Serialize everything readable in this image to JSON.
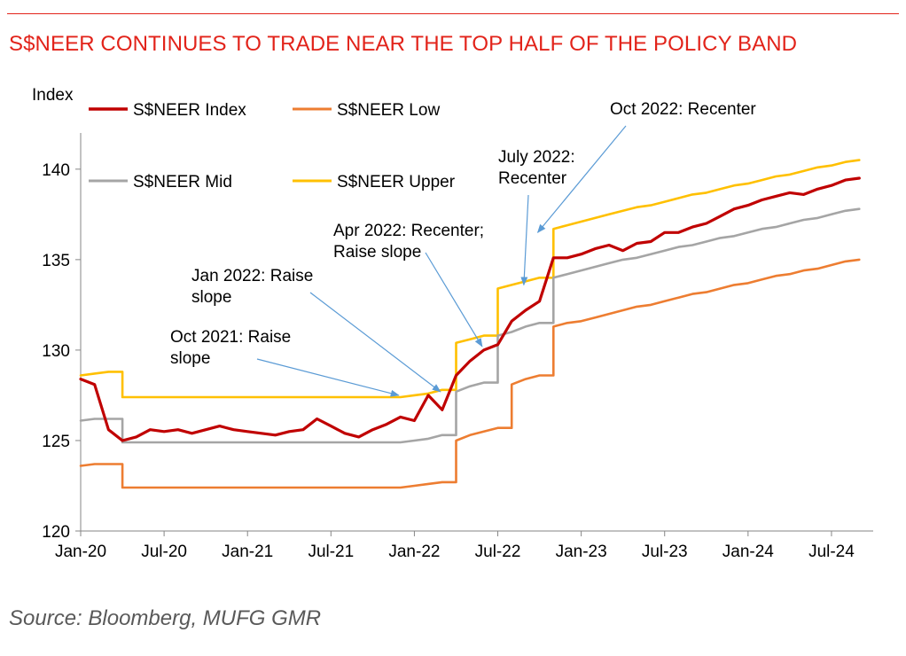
{
  "header": {
    "title": "S$NEER CONTINUES TO TRADE NEAR THE TOP HALF OF THE POLICY BAND"
  },
  "footer": {
    "source": "Source: Bloomberg, MUFG GMR"
  },
  "colors": {
    "title_red": "#e2231a",
    "index": "#c00000",
    "low": "#ed7d31",
    "mid": "#a5a5a5",
    "upper": "#ffc000",
    "annotation_arrow": "#5b9bd5"
  },
  "chart_data": {
    "type": "line",
    "ylabel": "Index",
    "ylim": [
      120,
      142
    ],
    "yticks": [
      120,
      125,
      130,
      135,
      140
    ],
    "xlim": [
      "2020-01",
      "2024-10"
    ],
    "xticks": [
      "Jan-20",
      "Jul-20",
      "Jan-21",
      "Jul-21",
      "Jan-22",
      "Jul-22",
      "Jan-23",
      "Jul-23",
      "Jan-24",
      "Jul-24"
    ],
    "grid": false,
    "legend_placement": "top-left",
    "x": [
      "2020-01",
      "2020-02",
      "2020-03",
      "2020-04",
      "2020-05",
      "2020-06",
      "2020-07",
      "2020-08",
      "2020-09",
      "2020-10",
      "2020-11",
      "2020-12",
      "2021-01",
      "2021-02",
      "2021-03",
      "2021-04",
      "2021-05",
      "2021-06",
      "2021-07",
      "2021-08",
      "2021-09",
      "2021-10",
      "2021-11",
      "2021-12",
      "2022-01",
      "2022-02",
      "2022-03",
      "2022-04",
      "2022-05",
      "2022-06",
      "2022-07",
      "2022-08",
      "2022-09",
      "2022-10",
      "2022-11",
      "2022-12",
      "2023-01",
      "2023-02",
      "2023-03",
      "2023-04",
      "2023-05",
      "2023-06",
      "2023-07",
      "2023-08",
      "2023-09",
      "2023-10",
      "2023-11",
      "2023-12",
      "2024-01",
      "2024-02",
      "2024-03",
      "2024-04",
      "2024-05",
      "2024-06",
      "2024-07",
      "2024-08",
      "2024-09"
    ],
    "series": [
      {
        "name": "S$NEER Index",
        "color": "#c00000",
        "values": [
          128.4,
          128.1,
          125.6,
          125.0,
          125.2,
          125.6,
          125.5,
          125.6,
          125.4,
          125.6,
          125.8,
          125.6,
          125.5,
          125.4,
          125.3,
          125.5,
          125.6,
          126.2,
          125.8,
          125.4,
          125.2,
          125.6,
          125.9,
          126.3,
          126.1,
          127.5,
          126.7,
          128.6,
          129.4,
          130.0,
          130.3,
          131.6,
          132.2,
          132.7,
          135.1,
          135.1,
          135.3,
          135.6,
          135.8,
          135.5,
          135.9,
          136.0,
          136.5,
          136.5,
          136.8,
          137.0,
          137.4,
          137.8,
          138.0,
          138.3,
          138.5,
          138.7,
          138.6,
          138.9,
          139.1,
          139.4,
          139.5
        ]
      },
      {
        "name": "S$NEER Low",
        "color": "#ed7d31",
        "values": [
          123.6,
          123.7,
          123.7,
          122.4,
          122.4,
          122.4,
          122.4,
          122.4,
          122.4,
          122.4,
          122.4,
          122.4,
          122.4,
          122.4,
          122.4,
          122.4,
          122.4,
          122.4,
          122.4,
          122.4,
          122.4,
          122.4,
          122.4,
          122.4,
          122.5,
          122.6,
          122.7,
          125.0,
          125.3,
          125.5,
          125.7,
          128.1,
          128.4,
          128.6,
          131.3,
          131.5,
          131.6,
          131.8,
          132.0,
          132.2,
          132.4,
          132.5,
          132.7,
          132.9,
          133.1,
          133.2,
          133.4,
          133.6,
          133.7,
          133.9,
          134.1,
          134.2,
          134.4,
          134.5,
          134.7,
          134.9,
          135.0
        ]
      },
      {
        "name": "S$NEER Mid",
        "color": "#a5a5a5",
        "values": [
          126.1,
          126.2,
          126.2,
          124.9,
          124.9,
          124.9,
          124.9,
          124.9,
          124.9,
          124.9,
          124.9,
          124.9,
          124.9,
          124.9,
          124.9,
          124.9,
          124.9,
          124.9,
          124.9,
          124.9,
          124.9,
          124.9,
          124.9,
          124.9,
          125.0,
          125.1,
          125.3,
          127.7,
          128.0,
          128.2,
          130.8,
          131.0,
          131.3,
          131.5,
          134.0,
          134.2,
          134.4,
          134.6,
          134.8,
          135.0,
          135.1,
          135.3,
          135.5,
          135.7,
          135.8,
          136.0,
          136.2,
          136.3,
          136.5,
          136.7,
          136.8,
          137.0,
          137.2,
          137.3,
          137.5,
          137.7,
          137.8
        ]
      },
      {
        "name": "S$NEER Upper",
        "color": "#ffc000",
        "values": [
          128.6,
          128.7,
          128.8,
          127.4,
          127.4,
          127.4,
          127.4,
          127.4,
          127.4,
          127.4,
          127.4,
          127.4,
          127.4,
          127.4,
          127.4,
          127.4,
          127.4,
          127.4,
          127.4,
          127.4,
          127.4,
          127.4,
          127.4,
          127.4,
          127.5,
          127.6,
          127.8,
          130.4,
          130.6,
          130.8,
          133.4,
          133.6,
          133.8,
          134.0,
          136.7,
          136.9,
          137.1,
          137.3,
          137.5,
          137.7,
          137.9,
          138.0,
          138.2,
          138.4,
          138.6,
          138.7,
          138.9,
          139.1,
          139.2,
          139.4,
          139.6,
          139.7,
          139.9,
          140.1,
          140.2,
          140.4,
          140.5
        ]
      }
    ],
    "annotations": [
      {
        "label1": "Oct 2021: Raise",
        "label2": "slope",
        "date": "2021-12",
        "value": 127.5
      },
      {
        "label1": "Jan 2022: Raise",
        "label2": "slope",
        "date": "2022-03",
        "value": 127.7
      },
      {
        "label1": "Apr 2022: Recenter;",
        "label2": "Raise slope",
        "date": "2022-06",
        "value": 130.2
      },
      {
        "label1": "July 2022:",
        "label2": "Recenter",
        "date": "2022-09",
        "value": 133.6
      },
      {
        "label1": "Oct 2022: Recenter",
        "label2": "",
        "date": "2022-10",
        "value": 136.5
      }
    ]
  }
}
